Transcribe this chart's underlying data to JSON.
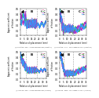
{
  "subplots": [
    {
      "label": "a",
      "phase_lines": [
        8,
        22
      ],
      "ylim": [
        0,
        0.5
      ],
      "xlim": [
        0,
        35
      ],
      "yticks": [
        0.0,
        0.1,
        0.2,
        0.3,
        0.4,
        0.5
      ],
      "xticks": [
        0,
        5,
        10,
        15,
        20,
        25,
        30,
        35
      ],
      "curve_style": "preset_top",
      "legend_labels": [
        "sp1",
        "sp2",
        "sp3",
        "sp4"
      ]
    },
    {
      "label": "b",
      "phase_lines": [
        5,
        18
      ],
      "ylim": [
        0,
        0.5
      ],
      "xlim": [
        0,
        35
      ],
      "yticks": [
        0.0,
        0.1,
        0.2,
        0.3,
        0.4,
        0.5
      ],
      "xticks": [
        0,
        5,
        10,
        15,
        20,
        25,
        30,
        35
      ],
      "curve_style": "preset_top_b",
      "legend_labels": [
        "sp1",
        "sp2",
        "sp3",
        "sp4"
      ]
    },
    {
      "label": "c",
      "phase_lines": [
        8,
        22
      ],
      "ylim": [
        0,
        0.5
      ],
      "xlim": [
        0,
        35
      ],
      "yticks": [
        0.0,
        0.1,
        0.2,
        0.3,
        0.4,
        0.5
      ],
      "xticks": [
        0,
        5,
        10,
        15,
        20,
        25,
        30,
        35
      ],
      "curve_style": "crimp_bot",
      "legend_labels": [
        "sp1",
        "sp2",
        "sp3",
        "sp4"
      ]
    },
    {
      "label": "d",
      "phase_lines": [
        5,
        18
      ],
      "ylim": [
        0,
        0.5
      ],
      "xlim": [
        0,
        35
      ],
      "yticks": [
        0.0,
        0.1,
        0.2,
        0.3,
        0.4,
        0.5
      ],
      "xticks": [
        0,
        5,
        10,
        15,
        20,
        25,
        30,
        35
      ],
      "curve_style": "crimp_bot_d",
      "legend_labels": [
        "sp1",
        "sp2",
        "sp3",
        "sp4"
      ]
    }
  ],
  "colors": [
    "#ff66aa",
    "#33bb33",
    "#9933cc",
    "#3399ff"
  ],
  "xlabel": "Relative displacement (mm)",
  "ylabel": "Apparent coefficient\nof friction",
  "caption_a": "(a) Presetting - lower - curved-edge specimen (presetting)",
  "caption_b": "(b) Presetting - upper - curved-edge specimen (presetting)",
  "caption_c": "(c) Crimping - lower - curved-edge specimen (crimping)",
  "caption_d": "(d) Crimping - upper - curved-edge specimen (crimping)",
  "background": "#ffffff"
}
